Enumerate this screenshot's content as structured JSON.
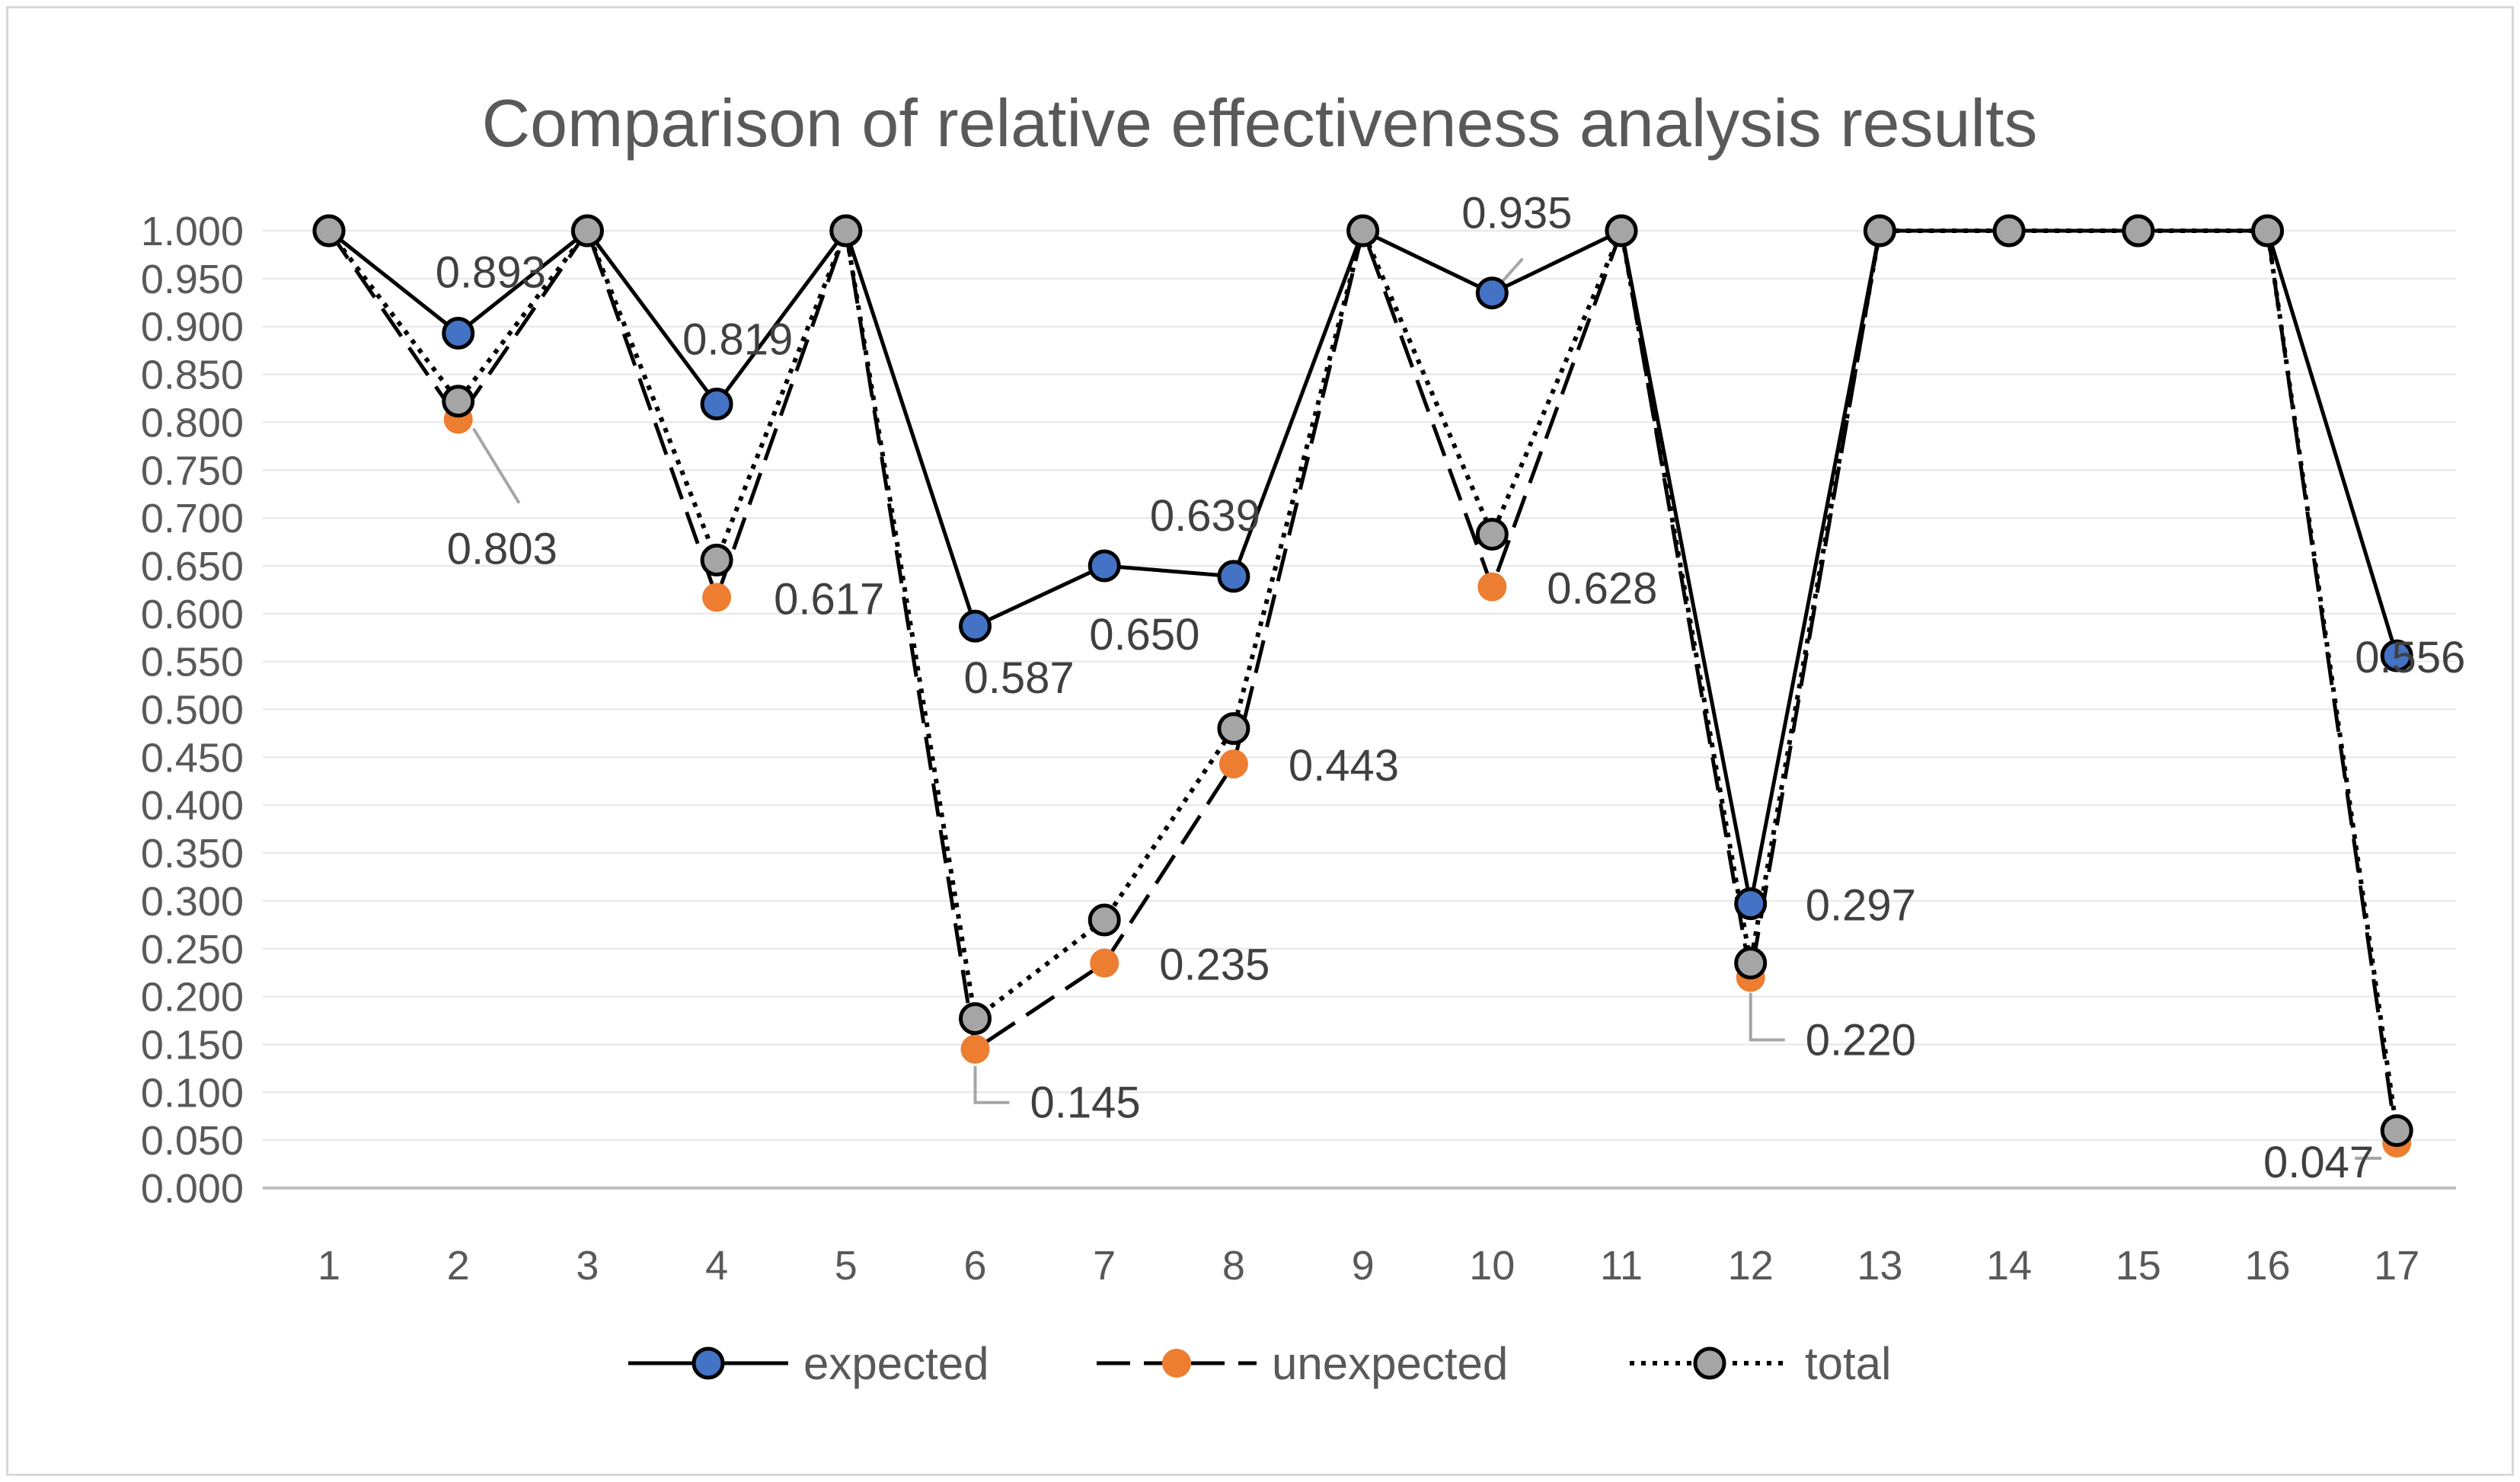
{
  "chart_data": {
    "type": "line",
    "title": "Comparison of relative effectiveness analysis results",
    "xlabel": "",
    "ylabel": "",
    "categories": [
      "1",
      "2",
      "3",
      "4",
      "5",
      "6",
      "7",
      "8",
      "9",
      "10",
      "11",
      "12",
      "13",
      "14",
      "15",
      "16",
      "17"
    ],
    "y_ticks": [
      "0.000",
      "0.050",
      "0.100",
      "0.150",
      "0.200",
      "0.250",
      "0.300",
      "0.350",
      "0.400",
      "0.450",
      "0.500",
      "0.550",
      "0.600",
      "0.650",
      "0.700",
      "0.750",
      "0.800",
      "0.850",
      "0.900",
      "0.950",
      "1.000"
    ],
    "ylim": [
      0,
      1
    ],
    "grid": true,
    "legend_position": "bottom",
    "series": [
      {
        "name": "expected",
        "color": "#4472C4",
        "line_style": "solid",
        "values": [
          1.0,
          0.893,
          1.0,
          0.819,
          1.0,
          0.587,
          0.65,
          0.639,
          1.0,
          0.935,
          1.0,
          0.297,
          1.0,
          1.0,
          1.0,
          1.0,
          0.556
        ]
      },
      {
        "name": "unexpected",
        "color": "#ED7D31",
        "line_style": "dash",
        "values": [
          1.0,
          0.803,
          1.0,
          0.617,
          1.0,
          0.145,
          0.235,
          0.443,
          1.0,
          0.628,
          1.0,
          0.22,
          1.0,
          1.0,
          1.0,
          1.0,
          0.047
        ]
      },
      {
        "name": "total",
        "color": "#A5A5A5",
        "line_style": "dot",
        "values": [
          1.0,
          0.822,
          1.0,
          0.656,
          1.0,
          0.177,
          0.28,
          0.48,
          1.0,
          0.683,
          1.0,
          0.235,
          1.0,
          1.0,
          1.0,
          1.0,
          0.06
        ]
      }
    ],
    "data_labels": [
      {
        "series": "expected",
        "index": 1,
        "text": "0.893"
      },
      {
        "series": "unexpected",
        "index": 1,
        "text": "0.803"
      },
      {
        "series": "expected",
        "index": 3,
        "text": "0.819"
      },
      {
        "series": "unexpected",
        "index": 3,
        "text": "0.617"
      },
      {
        "series": "expected",
        "index": 5,
        "text": "0.587"
      },
      {
        "series": "expected",
        "index": 6,
        "text": "0.650"
      },
      {
        "series": "expected",
        "index": 7,
        "text": "0.639"
      },
      {
        "series": "unexpected",
        "index": 5,
        "text": "0.145"
      },
      {
        "series": "unexpected",
        "index": 6,
        "text": "0.235"
      },
      {
        "series": "unexpected",
        "index": 7,
        "text": "0.443"
      },
      {
        "series": "expected",
        "index": 9,
        "text": "0.935"
      },
      {
        "series": "unexpected",
        "index": 9,
        "text": "0.628"
      },
      {
        "series": "expected",
        "index": 11,
        "text": "0.297"
      },
      {
        "series": "unexpected",
        "index": 11,
        "text": "0.220"
      },
      {
        "series": "expected",
        "index": 16,
        "text": "0.556"
      },
      {
        "series": "unexpected",
        "index": 16,
        "text": "0.047"
      }
    ]
  }
}
